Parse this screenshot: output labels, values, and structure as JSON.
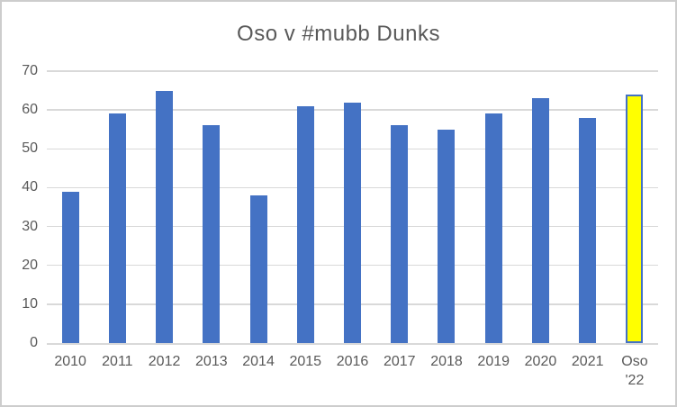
{
  "chart_data": {
    "type": "bar",
    "title": "Oso v #mubb Dunks",
    "categories": [
      "2010",
      "2011",
      "2012",
      "2013",
      "2014",
      "2015",
      "2016",
      "2017",
      "2018",
      "2019",
      "2020",
      "2021",
      "Oso '22"
    ],
    "values": [
      39,
      59,
      65,
      56,
      38,
      61,
      62,
      56,
      55,
      59,
      63,
      58,
      64
    ],
    "xlabel": "",
    "ylabel": "",
    "ylim": [
      0,
      70
    ],
    "yticks": [
      0,
      10,
      20,
      30,
      40,
      50,
      60,
      70
    ],
    "grid": true,
    "legend_position": "none",
    "bar_color": "#4472c4",
    "highlight_index": 12,
    "highlight_fill": "#ffff00",
    "highlight_border": "#4472c4",
    "text_color": "#595959",
    "gridline_color": "#d9d9d9",
    "background_color": "#ffffff",
    "border_color": "#cdcdcd"
  }
}
